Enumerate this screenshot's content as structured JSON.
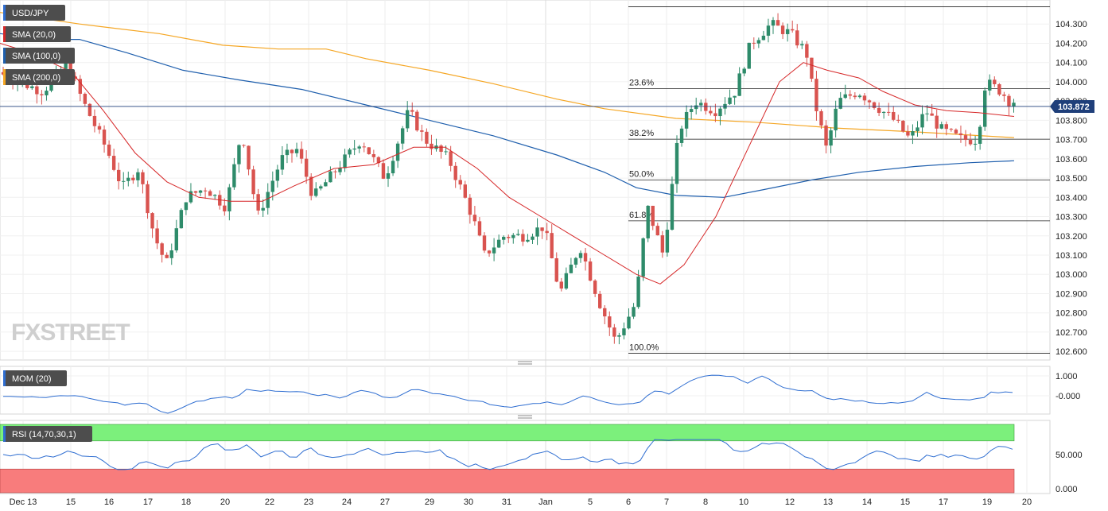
{
  "chart_data": {
    "type": "candlestick",
    "symbol": "USD/JPY",
    "indicators": [
      "SMA (20,0)",
      "SMA (100,0)",
      "SMA (200,0)"
    ],
    "indicator_colors": [
      "#d62728",
      "#1f5fad",
      "#f5a623"
    ],
    "current_price": "103.872",
    "watermark": "FXSTREET",
    "x_tick_labels": [
      "Dec 13",
      "15",
      "16",
      "17",
      "18",
      "20",
      "22",
      "23",
      "24",
      "27",
      "29",
      "30",
      "31",
      "Jan",
      "5",
      "6",
      "7",
      "8",
      "10",
      "12",
      "13",
      "14",
      "15",
      "17",
      "19",
      "20"
    ],
    "y_tick_labels": [
      "104.300",
      "104.200",
      "104.100",
      "104.000",
      "103.900",
      "103.800",
      "103.700",
      "103.600",
      "103.500",
      "103.400",
      "103.300",
      "103.200",
      "103.100",
      "103.000",
      "102.900",
      "102.800",
      "102.700",
      "102.600"
    ],
    "ylim": [
      102.58,
      104.4
    ],
    "fibonacci": {
      "high": 104.39,
      "low": 102.59,
      "levels": [
        {
          "label": "23.6%",
          "value": 103.965
        },
        {
          "label": "38.2%",
          "value": 103.702
        },
        {
          "label": "50.0%",
          "value": 103.49
        },
        {
          "label": "61.8%",
          "value": 103.278
        },
        {
          "label": "100.0%",
          "value": 102.59
        }
      ]
    },
    "mom": {
      "label": "MOM (20)",
      "y_tick_labels": [
        "1.000",
        "-0.000"
      ]
    },
    "rsi": {
      "label": "RSI (14,70,30,1)",
      "y_tick_labels": [
        "50.000",
        "0.000"
      ],
      "overbought": 70,
      "oversold": 30
    }
  }
}
